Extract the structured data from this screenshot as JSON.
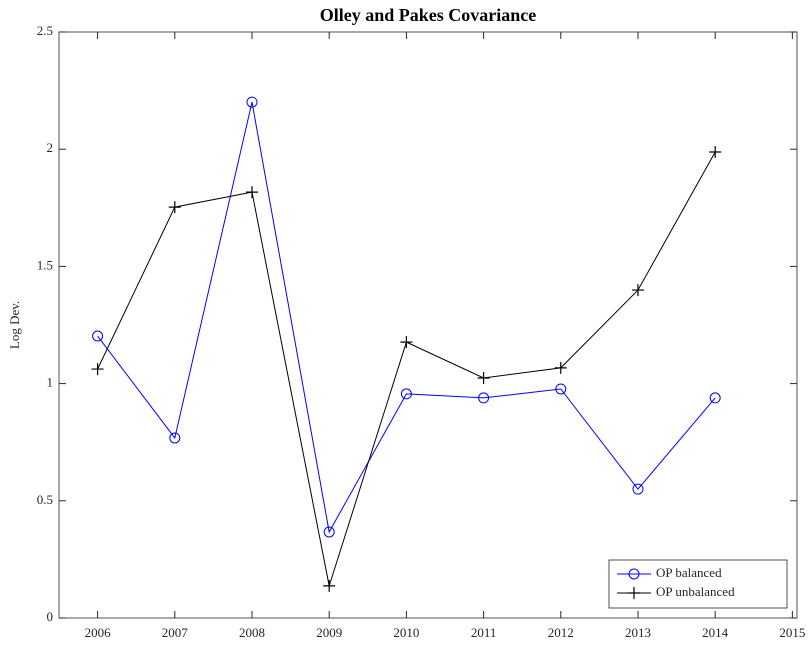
{
  "chart_data": {
    "type": "line",
    "title": "Olley and Pakes Covariance",
    "ylabel": "Log Dev.",
    "x": [
      2006,
      2007,
      2008,
      2009,
      2010,
      2011,
      2012,
      2013,
      2014
    ],
    "series": [
      {
        "name": "OP balanced",
        "color": "#0000ff",
        "marker": "circle",
        "values": [
          1.203,
          0.768,
          2.201,
          0.367,
          0.956,
          0.939,
          0.977,
          0.55,
          0.939
        ]
      },
      {
        "name": "OP unbalanced",
        "color": "#000000",
        "marker": "plus",
        "values": [
          1.062,
          1.753,
          1.817,
          0.137,
          1.177,
          1.024,
          1.067,
          1.399,
          1.988
        ]
      }
    ],
    "xlim": [
      2005.5,
      2015.06
    ],
    "xticks": [
      2006,
      2007,
      2008,
      2009,
      2010,
      2011,
      2012,
      2013,
      2014,
      2015
    ],
    "ylim": [
      0,
      2.5
    ],
    "yticks": [
      0,
      0.5,
      1,
      1.5,
      2,
      2.5
    ],
    "grid": false,
    "legend": "bottom-right"
  }
}
